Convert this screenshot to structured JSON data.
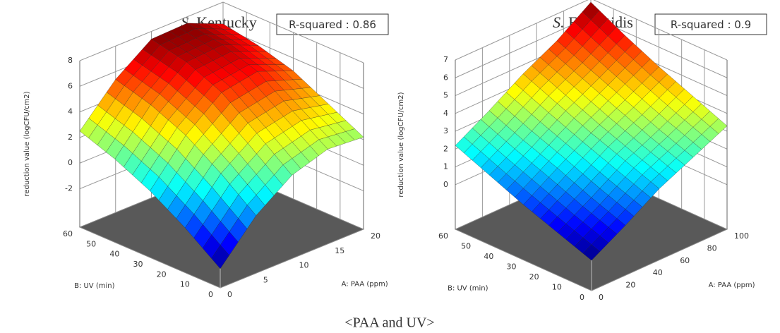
{
  "chart_data": [
    {
      "type": "surface3d",
      "title": [
        "S.",
        "Kentucky"
      ],
      "fit_label": "R-squared :",
      "r_squared": 0.86,
      "xlabel": "A: PAA (ppm)",
      "ylabel": "B: UV (min)",
      "zlabel": "reduction value (logCFU/cm2)",
      "xlim": [
        0,
        20
      ],
      "xticks": [
        0,
        5,
        10,
        15,
        20
      ],
      "ylim": [
        0,
        60
      ],
      "yticks": [
        0,
        10,
        20,
        30,
        40,
        50,
        60
      ],
      "zlim": [
        -5,
        8
      ],
      "zticks": [
        -2,
        0,
        2,
        4,
        6,
        8
      ],
      "x": [
        0,
        5,
        10,
        15,
        20
      ],
      "y": [
        0,
        15,
        30,
        45,
        60
      ],
      "z": [
        [
          -3.5,
          -0.5,
          1.5,
          2.4,
          2.2
        ],
        [
          -1.5,
          1.6,
          3.6,
          4.2,
          3.6
        ],
        [
          0.2,
          3.4,
          5.6,
          6.1,
          5.0
        ],
        [
          1.5,
          4.6,
          6.8,
          7.0,
          5.8
        ],
        [
          2.5,
          5.4,
          7.4,
          7.5,
          6.3
        ]
      ]
    },
    {
      "type": "surface3d",
      "title": [
        "S.",
        "Enteritidis"
      ],
      "fit_label": "R-squared :",
      "r_squared": 0.9,
      "xlabel": "A: PAA (ppm)",
      "ylabel": "B: UV (min)",
      "zlabel": "reduction value (logCFU/cm2)",
      "xlim": [
        0,
        100
      ],
      "xticks": [
        0,
        20,
        40,
        60,
        80,
        100
      ],
      "ylim": [
        0,
        60
      ],
      "yticks": [
        0,
        10,
        20,
        30,
        40,
        50,
        60
      ],
      "zlim": [
        -2.5,
        7
      ],
      "zticks": [
        0,
        1,
        2,
        3,
        4,
        5,
        6,
        7
      ],
      "x": [
        0,
        25,
        50,
        75,
        100
      ],
      "y": [
        0,
        15,
        30,
        45,
        60
      ],
      "z": [
        [
          -0.8,
          0.3,
          1.5,
          2.4,
          3.3
        ],
        [
          -0.1,
          1.0,
          2.2,
          3.1,
          4.1
        ],
        [
          0.6,
          1.8,
          2.9,
          3.9,
          4.9
        ],
        [
          1.4,
          2.5,
          3.7,
          4.7,
          5.8
        ],
        [
          2.2,
          3.3,
          4.5,
          5.5,
          6.8
        ]
      ]
    }
  ],
  "caption": "<PAA and UV>"
}
